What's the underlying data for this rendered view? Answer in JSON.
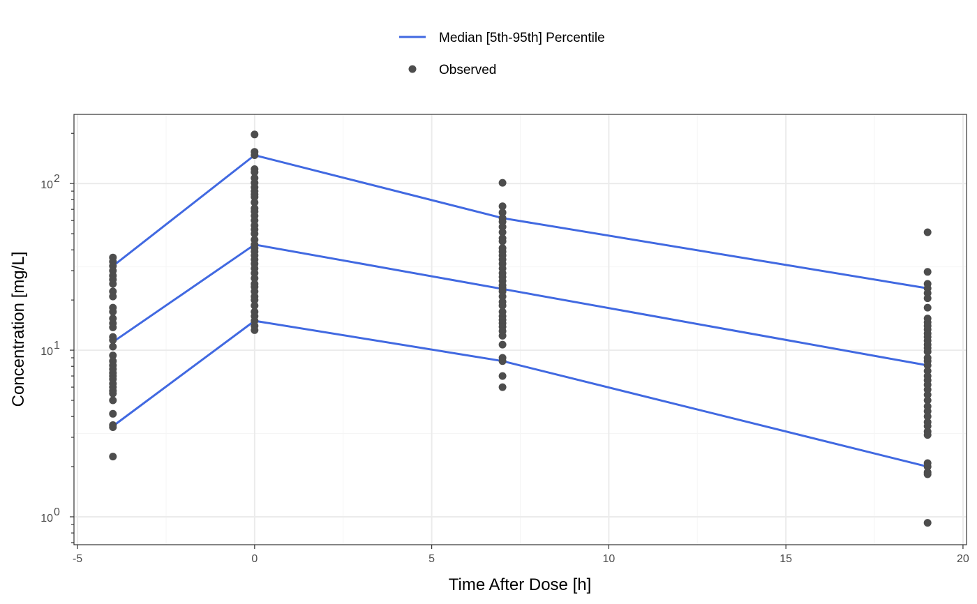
{
  "chart_data": {
    "type": "scatter",
    "xlabel": "Time After Dose [h]",
    "ylabel": "Concentration [mg/L]",
    "xlim": [
      -5.1,
      20.1
    ],
    "ylim": [
      0.68,
      260
    ],
    "y_scale": "log10",
    "x_ticks": [
      -5,
      0,
      5,
      10,
      15,
      20
    ],
    "x_tick_labels": [
      "-5",
      "0",
      "5",
      "10",
      "15",
      "20"
    ],
    "y_ticks": [
      1,
      10,
      100
    ],
    "y_tick_labels": [
      {
        "base": "10",
        "exp": "0"
      },
      {
        "base": "10",
        "exp": "1"
      },
      {
        "base": "10",
        "exp": "2"
      }
    ],
    "grid": true,
    "legend_position": "top",
    "legend": [
      {
        "label": "Median [5th-95th] Percentile",
        "kind": "line",
        "color": "#4169E1"
      },
      {
        "label": "Observed",
        "kind": "point",
        "color": "#4D4D4D"
      }
    ],
    "series": [
      {
        "role": "percentile-95th",
        "x": [
          -4,
          0,
          7,
          19
        ],
        "y": [
          32,
          148,
          62,
          23.5
        ],
        "color": "#4169E1"
      },
      {
        "role": "median",
        "x": [
          -4,
          0,
          7,
          19
        ],
        "y": [
          11.2,
          43,
          23.3,
          8.1
        ],
        "color": "#4169E1"
      },
      {
        "role": "percentile-5th",
        "x": [
          -4,
          0,
          7,
          19
        ],
        "y": [
          3.5,
          15,
          8.6,
          2.0
        ],
        "color": "#4169E1"
      }
    ],
    "observed": [
      {
        "x": -4,
        "y": [
          36,
          34,
          32,
          30,
          28,
          26.5,
          25,
          22.5,
          21,
          18,
          17,
          15.5,
          14.5,
          13.7,
          12,
          11.5,
          10.5,
          9.3,
          8.6,
          8.1,
          7.7,
          7.3,
          7.0,
          6.7,
          6.3,
          6.0,
          5.7,
          5.5,
          5.0,
          4.15,
          3.55,
          3.45,
          2.3
        ]
      },
      {
        "x": 0,
        "y": [
          197,
          155,
          148,
          122,
          117,
          108,
          101,
          95,
          90,
          86,
          83,
          77,
          71,
          68,
          64,
          60,
          56,
          53,
          50,
          46,
          43,
          41,
          39,
          37,
          35,
          33,
          31,
          29,
          27,
          25,
          24,
          22.5,
          21,
          20,
          18.5,
          17,
          16,
          15,
          14,
          13.2
        ]
      },
      {
        "x": 7,
        "y": [
          101,
          73,
          67,
          62,
          59,
          55,
          51,
          47,
          45,
          41,
          39,
          37,
          35,
          33,
          31,
          29,
          27.5,
          26,
          24.5,
          23.5,
          22.5,
          21,
          19.5,
          18.5,
          17,
          16,
          15.2,
          14.5,
          13.8,
          13,
          12.2,
          10.8,
          9.0,
          8.6,
          7.0,
          6.0
        ]
      },
      {
        "x": 19,
        "y": [
          51,
          29.5,
          25,
          23.5,
          22,
          20.5,
          18,
          15.5,
          14.7,
          14,
          13.3,
          12.6,
          12,
          11.4,
          10.8,
          10.3,
          9.8,
          9.0,
          8.6,
          8.1,
          7.5,
          7.0,
          6.6,
          6.2,
          5.8,
          5.4,
          5.0,
          4.6,
          4.3,
          4.0,
          3.7,
          3.5,
          3.25,
          3.1,
          2.1,
          2.0,
          1.85,
          1.8,
          0.92
        ]
      }
    ],
    "colors": {
      "line": "#4169E1",
      "point": "#4D4D4D",
      "grid_major": "#EBEBEB",
      "grid_minor": "#F5F5F5",
      "panel_border": "#333333"
    }
  }
}
